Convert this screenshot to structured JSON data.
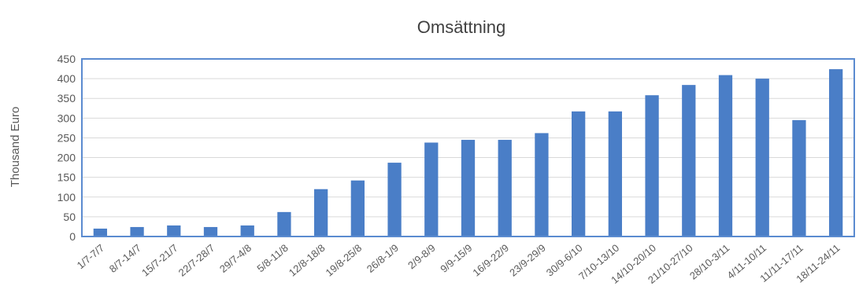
{
  "chart_data": {
    "type": "bar",
    "title": "Omsättning",
    "xlabel": "",
    "ylabel": "Thousand Euro",
    "ylim": [
      0,
      450
    ],
    "yticks": [
      0,
      50,
      100,
      150,
      200,
      250,
      300,
      350,
      400,
      450
    ],
    "grid": true,
    "legend": "none",
    "bar_color": "#4A7EC7",
    "plot_border_color": "#5B8BD0",
    "gridline_color": "#D9D9D9",
    "categories": [
      "1/7-7/7",
      "8/7-14/7",
      "15/7-21/7",
      "22/7-28/7",
      "29/7-4/8",
      "5/8-11/8",
      "12/8-18/8",
      "19/8-25/8",
      "26/8-1/9",
      "2/9-8/9",
      "9/9-15/9",
      "16/9-22/9",
      "23/9-29/9",
      "30/9-6/10",
      "7/10-13/10",
      "14/10-20/10",
      "21/10-27/10",
      "28/10-3/11",
      "4/11-10/11",
      "11/11-17/11",
      "18/11-24/11"
    ],
    "values": [
      20,
      24,
      28,
      24,
      28,
      62,
      120,
      142,
      187,
      238,
      245,
      245,
      262,
      317,
      317,
      358,
      384,
      409,
      400,
      295,
      424
    ]
  }
}
